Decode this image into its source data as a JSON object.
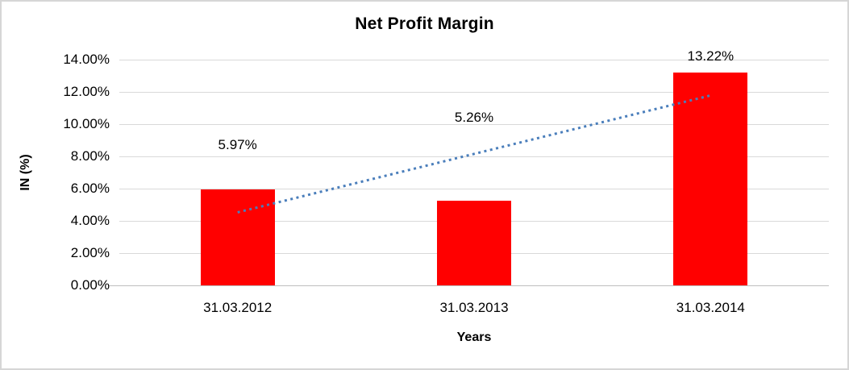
{
  "window": {
    "background": "#ffffff",
    "border_color": "#d6d6d6"
  },
  "chart_data": {
    "type": "bar",
    "title": "Net Profit Margin",
    "xlabel": "Years",
    "ylabel": "IN (%)",
    "categories": [
      "31.03.2012",
      "31.03.2013",
      "31.03.2014"
    ],
    "values": [
      5.97,
      5.26,
      13.22
    ],
    "data_labels": [
      "5.97%",
      "5.26%",
      "13.22%"
    ],
    "data_label_heights_pct": [
      8.7,
      10.4,
      14.2
    ],
    "ylim": [
      0,
      14
    ],
    "yticks": [
      0,
      2,
      4,
      6,
      8,
      10,
      12,
      14
    ],
    "ytick_labels": [
      "0.00%",
      "2.00%",
      "4.00%",
      "6.00%",
      "8.00%",
      "10.00%",
      "12.00%",
      "14.00%"
    ],
    "grid": true,
    "legend": "none",
    "bar_color": "#ff0000",
    "gridline_color": "#d9d9d9",
    "axis_color": "#bfbfbf",
    "text_color": "#000000",
    "trendline": {
      "type": "linear",
      "style": "dotted",
      "color": "#4a7ebb",
      "start_pct": 4.53,
      "end_pct": 11.78
    }
  }
}
